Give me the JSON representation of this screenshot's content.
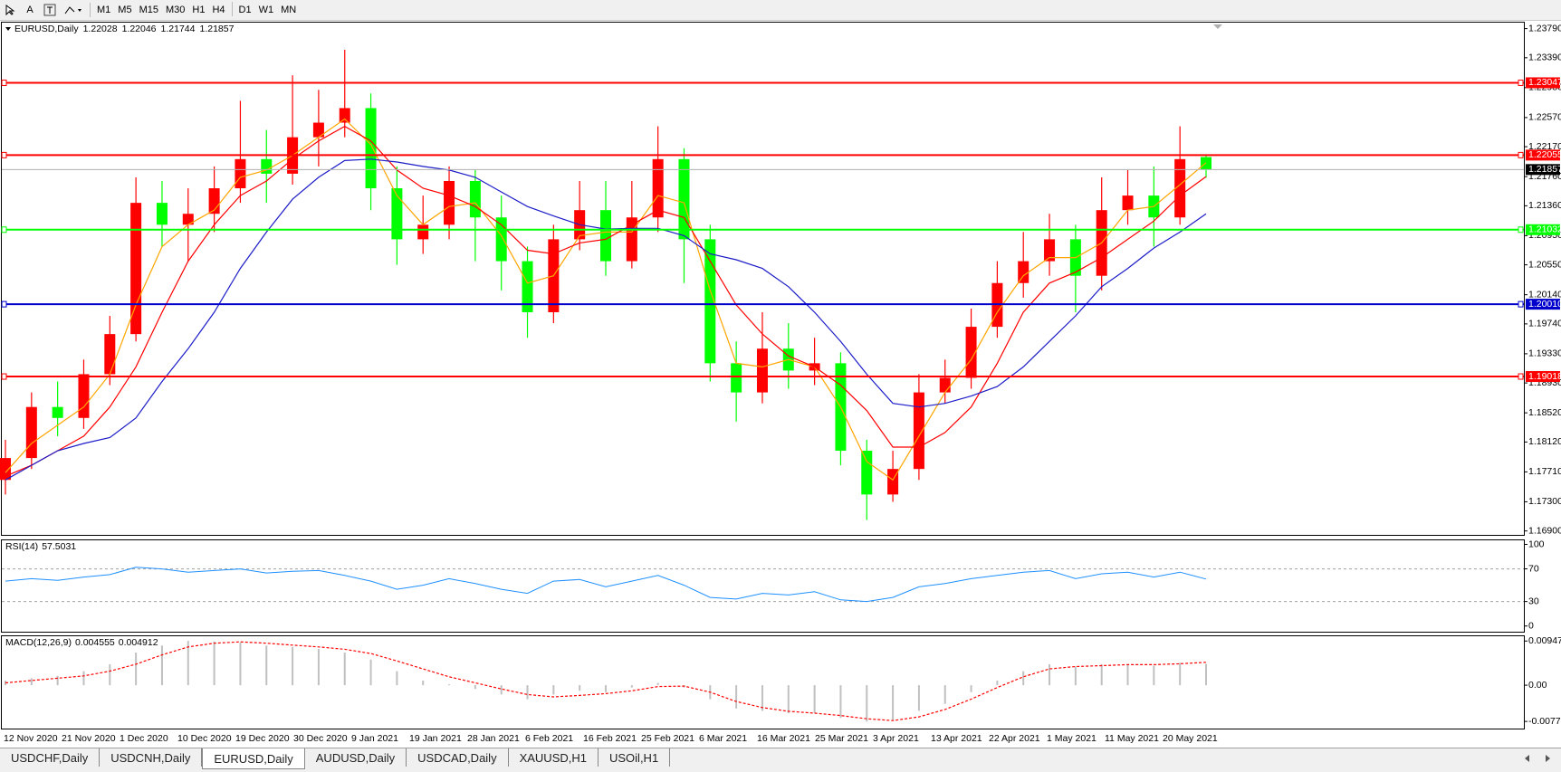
{
  "toolbar": {
    "text_tool": "A",
    "timeframes": [
      "M1",
      "M5",
      "M15",
      "M30",
      "H1",
      "H4",
      "D1",
      "W1",
      "MN"
    ]
  },
  "tabs": [
    "USDCHF,Daily",
    "USDCNH,Daily",
    "EURUSD,Daily",
    "AUDUSD,Daily",
    "USDCAD,Daily",
    "XAUUSD,H1",
    "USOil,H1"
  ],
  "active_tab": 2,
  "chart_data": {
    "type": "candlestick",
    "title": "EURUSD,Daily",
    "colors": {
      "up": "#ff0000",
      "down": "#00ff00"
    },
    "candles": {
      "open": [
        1.176,
        1.179,
        1.186,
        1.1845,
        1.1905,
        1.196,
        1.214,
        1.211,
        1.2125,
        1.216,
        1.22,
        1.218,
        1.223,
        1.225,
        1.227,
        1.216,
        1.209,
        1.211,
        1.217,
        1.212,
        1.206,
        1.199,
        1.209,
        1.213,
        1.206,
        1.212,
        1.22,
        1.209,
        1.192,
        1.188,
        1.194,
        1.191,
        1.192,
        1.18,
        1.174,
        1.1775,
        1.188,
        1.19,
        1.197,
        1.203,
        1.206,
        1.209,
        1.204,
        1.213,
        1.215,
        1.212,
        1.22028
      ],
      "high": [
        1.1815,
        1.188,
        1.1895,
        1.1925,
        1.1985,
        1.2175,
        1.217,
        1.216,
        1.219,
        1.228,
        1.224,
        1.2315,
        1.2295,
        1.235,
        1.229,
        1.219,
        1.215,
        1.219,
        1.2185,
        1.215,
        1.208,
        1.211,
        1.217,
        1.217,
        1.217,
        1.2245,
        1.2215,
        1.211,
        1.195,
        1.199,
        1.1975,
        1.1955,
        1.1935,
        1.1815,
        1.18,
        1.1905,
        1.1925,
        1.1995,
        1.206,
        1.21,
        1.2125,
        1.211,
        1.2175,
        1.2185,
        1.219,
        1.2245,
        1.22046
      ],
      "low": [
        1.174,
        1.1775,
        1.182,
        1.183,
        1.189,
        1.195,
        1.208,
        1.206,
        1.21,
        1.214,
        1.214,
        1.2165,
        1.219,
        1.223,
        1.213,
        1.2055,
        1.207,
        1.209,
        1.206,
        1.202,
        1.1955,
        1.1975,
        1.2075,
        1.204,
        1.205,
        1.21,
        1.203,
        1.1895,
        1.184,
        1.1865,
        1.1885,
        1.189,
        1.178,
        1.1705,
        1.173,
        1.176,
        1.1865,
        1.1885,
        1.1955,
        1.201,
        1.204,
        1.199,
        1.202,
        1.211,
        1.208,
        1.211,
        1.21744
      ],
      "close": [
        1.179,
        1.186,
        1.1845,
        1.1905,
        1.196,
        1.214,
        1.211,
        1.2125,
        1.216,
        1.22,
        1.218,
        1.223,
        1.225,
        1.227,
        1.216,
        1.209,
        1.211,
        1.217,
        1.212,
        1.206,
        1.199,
        1.209,
        1.213,
        1.206,
        1.212,
        1.22,
        1.209,
        1.192,
        1.188,
        1.194,
        1.191,
        1.192,
        1.18,
        1.174,
        1.1775,
        1.188,
        1.19,
        1.197,
        1.203,
        1.206,
        1.209,
        1.204,
        1.213,
        1.215,
        1.212,
        1.22,
        1.21857
      ]
    },
    "moving_averages": [
      {
        "color": "#ffa500",
        "values": [
          1.177,
          1.181,
          1.1835,
          1.186,
          1.1905,
          1.2,
          1.208,
          1.211,
          1.213,
          1.2175,
          1.2185,
          1.2205,
          1.223,
          1.2255,
          1.222,
          1.215,
          1.211,
          1.2135,
          1.214,
          1.2095,
          1.203,
          1.204,
          1.2095,
          1.21,
          1.21,
          1.215,
          1.214,
          1.202,
          1.192,
          1.1915,
          1.1925,
          1.1915,
          1.186,
          1.1785,
          1.176,
          1.182,
          1.188,
          1.1925,
          1.199,
          1.204,
          1.2065,
          1.2065,
          1.2085,
          1.213,
          1.2135,
          1.2165,
          1.2195
        ]
      },
      {
        "color": "#ff0000",
        "values": [
          1.1765,
          1.178,
          1.18,
          1.182,
          1.186,
          1.1915,
          1.199,
          1.206,
          1.211,
          1.215,
          1.217,
          1.22,
          1.2225,
          1.2245,
          1.2225,
          1.2185,
          1.216,
          1.215,
          1.2135,
          1.211,
          1.2075,
          1.207,
          1.2085,
          1.209,
          1.211,
          1.213,
          1.212,
          1.206,
          1.2,
          1.196,
          1.193,
          1.1915,
          1.189,
          1.1855,
          1.1805,
          1.1805,
          1.1825,
          1.186,
          1.192,
          1.199,
          1.203,
          1.2045,
          1.2065,
          1.209,
          1.2115,
          1.215,
          1.2176
        ]
      },
      {
        "color": "#1c1cc8",
        "values": [
          1.176,
          1.178,
          1.18,
          1.181,
          1.1818,
          1.1845,
          1.1895,
          1.194,
          1.199,
          1.205,
          1.21,
          1.2145,
          1.2175,
          1.2198,
          1.22,
          1.2196,
          1.219,
          1.2185,
          1.2175,
          1.2155,
          1.2135,
          1.2122,
          1.211,
          1.2104,
          1.2105,
          1.2105,
          1.2095,
          1.207,
          1.2062,
          1.205,
          1.2025,
          1.199,
          1.195,
          1.1905,
          1.1865,
          1.186,
          1.1865,
          1.1875,
          1.1888,
          1.1915,
          1.195,
          1.1985,
          1.2025,
          1.205,
          1.2078,
          1.21,
          1.2125
        ]
      }
    ],
    "levels": [
      {
        "value": 1.23047,
        "color": "#ff0000"
      },
      {
        "value": 1.22055,
        "color": "#ff0000"
      },
      {
        "value": 1.21032,
        "color": "#00ff00"
      },
      {
        "value": 1.2001,
        "label": "1.20010",
        "color": "#0000cc"
      },
      {
        "value": 1.19018,
        "color": "#ff0000"
      }
    ],
    "ylim": [
      1.16846,
      1.23872
    ],
    "yticks": [
      {
        "value": 1.2379,
        "label": "1.23790"
      },
      {
        "value": 1.2339,
        "label": "1.23390"
      },
      {
        "value": 1.2298,
        "label": "1.22980"
      },
      {
        "value": 1.2257,
        "label": "1.22570"
      },
      {
        "value": 1.2217,
        "label": "1.22170"
      },
      {
        "value": 1.2176,
        "label": "1.21760"
      },
      {
        "value": 1.2136,
        "label": "1.21360"
      },
      {
        "value": 1.2095,
        "label": "1.20950"
      },
      {
        "value": 1.2055,
        "label": "1.20550"
      },
      {
        "value": 1.2014,
        "label": "1.20140"
      },
      {
        "value": 1.1974,
        "label": "1.19740"
      },
      {
        "value": 1.1933,
        "label": "1.19330"
      },
      {
        "value": 1.1893,
        "label": "1.18930"
      },
      {
        "value": 1.1852,
        "label": "1.18520"
      },
      {
        "value": 1.1812,
        "label": "1.18120"
      },
      {
        "value": 1.1771,
        "label": "1.17710"
      },
      {
        "value": 1.173,
        "label": "1.17300"
      },
      {
        "value": 1.169,
        "label": "1.16900"
      }
    ],
    "x_labels": [
      "12 Nov 2020",
      "21 Nov 2020",
      "1 Dec 2020",
      "10 Dec 2020",
      "19 Dec 2020",
      "30 Dec 2020",
      "9 Jan 2021",
      "19 Jan 2021",
      "28 Jan 2021",
      "6 Feb 2021",
      "16 Feb 2021",
      "25 Feb 2021",
      "6 Mar 2021",
      "16 Mar 2021",
      "25 Mar 2021",
      "3 Apr 2021",
      "13 Apr 2021",
      "22 Apr 2021",
      "1 May 2021",
      "11 May 2021",
      "20 May 2021"
    ],
    "rsi": {
      "title": "RSI(14)",
      "color": "#1e90ff",
      "values": [
        55,
        58,
        56,
        60,
        63,
        72,
        70,
        66,
        68,
        70,
        65,
        67,
        68,
        62,
        55,
        45,
        50,
        58,
        52,
        45,
        40,
        55,
        57,
        48,
        55,
        62,
        50,
        35,
        33,
        40,
        38,
        42,
        32,
        30,
        35,
        48,
        52,
        58,
        62,
        66,
        68,
        58,
        64,
        66,
        60,
        66,
        57.5031
      ],
      "levels": [
        70,
        30
      ],
      "ylim": [
        -7,
        105
      ],
      "yticks": [
        100,
        70,
        30,
        0
      ]
    },
    "macd": {
      "title": "MACD(12,26,9)",
      "histogram": {
        "color": "#c0c0c0",
        "values": [
          0.001,
          0.0015,
          0.002,
          0.003,
          0.0045,
          0.007,
          0.0085,
          0.0095,
          0.0094,
          0.0092,
          0.0085,
          0.0082,
          0.0078,
          0.007,
          0.0055,
          0.003,
          0.001,
          0.0002,
          -0.0008,
          -0.002,
          -0.003,
          -0.002,
          -0.0012,
          -0.0015,
          -0.0005,
          0.0005,
          -0.0005,
          -0.003,
          -0.005,
          -0.0055,
          -0.006,
          -0.006,
          -0.007,
          -0.0078,
          -0.0075,
          -0.0055,
          -0.004,
          -0.0015,
          0.001,
          0.003,
          0.0045,
          0.004,
          0.0045,
          0.0045,
          0.0042,
          0.0048,
          0.004555
        ]
      },
      "signal": {
        "color": "#ff0000",
        "values": [
          0.0005,
          0.001,
          0.0015,
          0.002,
          0.003,
          0.0045,
          0.0065,
          0.0082,
          0.009,
          0.0093,
          0.009,
          0.0086,
          0.0082,
          0.0077,
          0.0068,
          0.0052,
          0.0035,
          0.0018,
          0.0005,
          -0.0008,
          -0.002,
          -0.0025,
          -0.0022,
          -0.0018,
          -0.0012,
          -0.0003,
          -0.0002,
          -0.0015,
          -0.0035,
          -0.0048,
          -0.0056,
          -0.006,
          -0.0065,
          -0.0072,
          -0.0076,
          -0.0068,
          -0.0052,
          -0.003,
          -0.0005,
          0.0018,
          0.0035,
          0.004,
          0.0042,
          0.0044,
          0.0044,
          0.0046,
          0.004912
        ]
      },
      "ylim": [
        -0.0093,
        0.0105
      ],
      "yticks": [
        0.009478,
        {
          "value": 0,
          "label": "0.00"
        },
        -0.00777
      ]
    }
  }
}
